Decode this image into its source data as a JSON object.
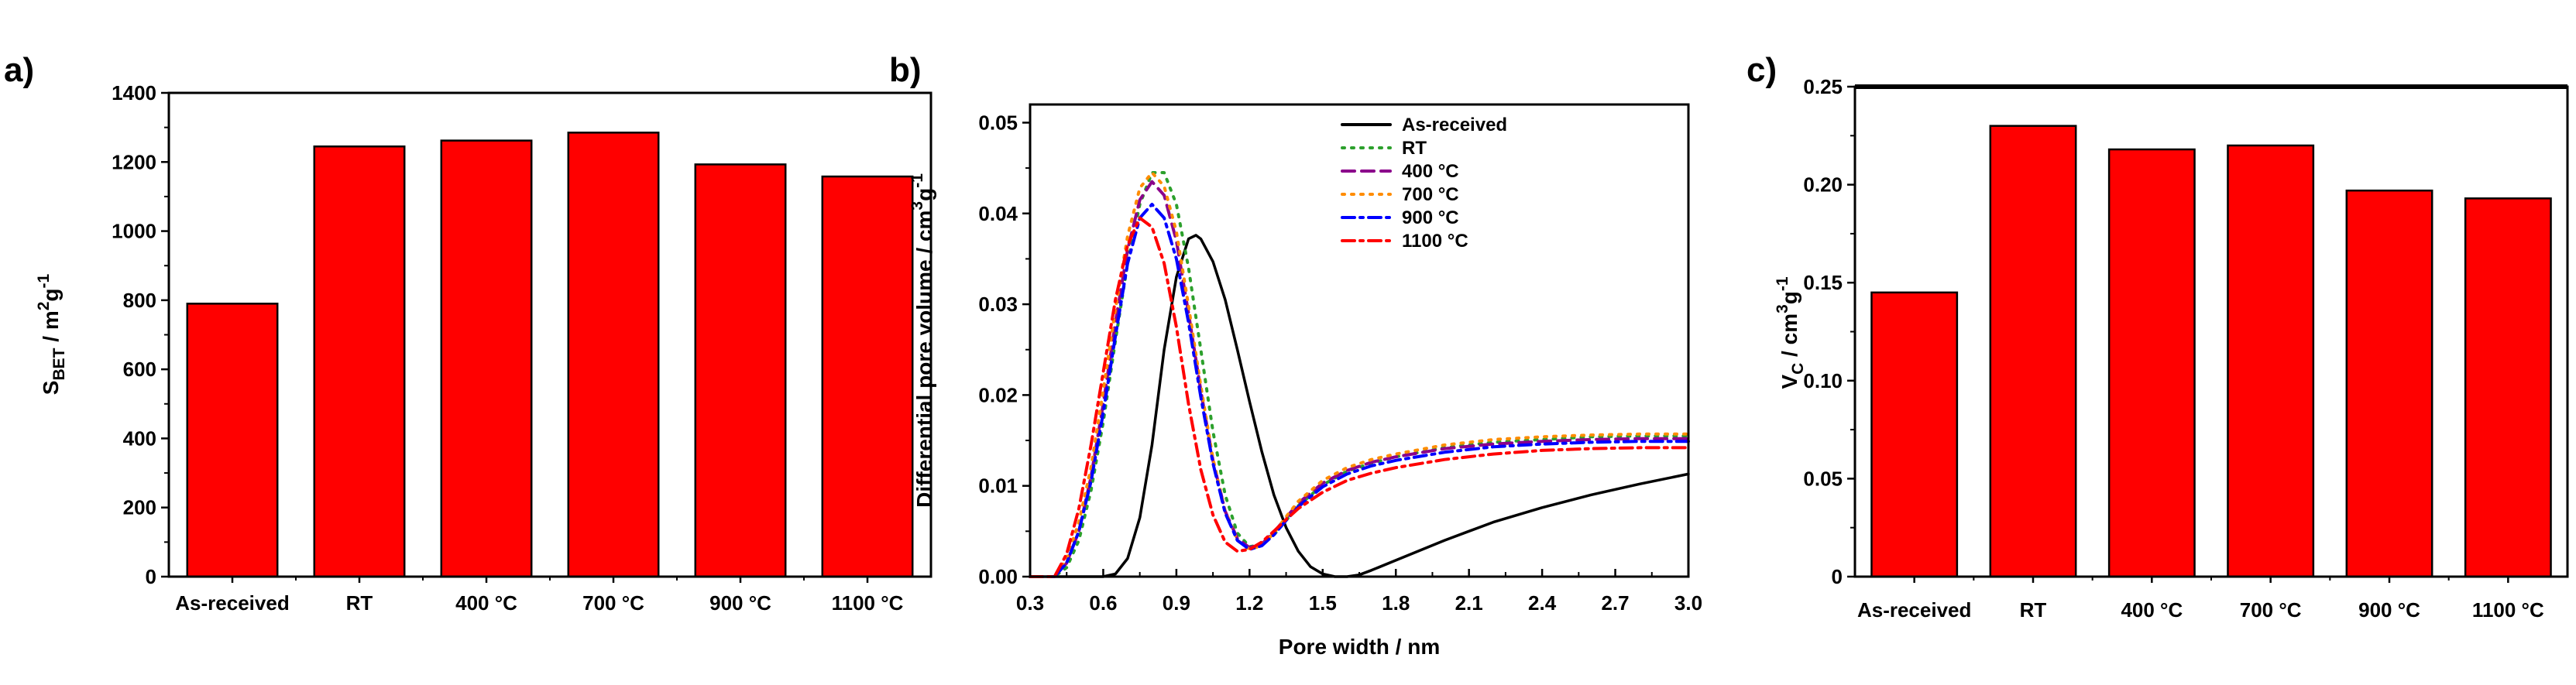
{
  "chart_data": [
    {
      "panel": "a)",
      "type": "bar",
      "categories": [
        "As-received",
        "RT",
        "400 °C",
        "700 °C",
        "900 °C",
        "1100 °C"
      ],
      "values": [
        790,
        1245,
        1262,
        1285,
        1193,
        1158
      ],
      "ylabel": "S_BET / m²g⁻¹",
      "ylabel_main": "S",
      "ylabel_sub": "BET",
      "ylabel_mid": " / m",
      "ylabel_sup1": "2",
      "ylabel_g": "g",
      "ylabel_sup2": "-1",
      "ylim": [
        0,
        1400
      ],
      "yticks": [
        "0",
        "200",
        "400",
        "600",
        "800",
        "1000",
        "1200",
        "1400"
      ],
      "bar_color": "#ff0000"
    },
    {
      "panel": "b)",
      "type": "line",
      "xlabel": "Pore width / nm",
      "ylabel": "Differential pore volume / cm³g⁻¹",
      "ylabel_text": "Differential pore volume / cm",
      "ylabel_sup1": "3",
      "ylabel_g": "g",
      "ylabel_sup2": "-1",
      "xlim": [
        0.3,
        3.0
      ],
      "ylim": [
        0,
        0.052
      ],
      "xticks": [
        "0.3",
        "0.6",
        "0.9",
        "1.2",
        "1.5",
        "1.8",
        "2.1",
        "2.4",
        "2.7",
        "3.0"
      ],
      "yticks": [
        "0.00",
        "0.01",
        "0.02",
        "0.03",
        "0.04",
        "0.05"
      ],
      "legend_position": "top-right",
      "series": [
        {
          "name": "As-received",
          "color": "#000000",
          "dash": "solid",
          "x": [
            0.3,
            0.6,
            0.65,
            0.7,
            0.75,
            0.8,
            0.85,
            0.9,
            0.95,
            0.98,
            1.0,
            1.05,
            1.1,
            1.15,
            1.2,
            1.25,
            1.3,
            1.35,
            1.4,
            1.45,
            1.5,
            1.55,
            1.6,
            1.65,
            1.7,
            1.8,
            1.9,
            2.0,
            2.1,
            2.2,
            2.4,
            2.6,
            2.8,
            3.0
          ],
          "y": [
            0.0,
            0.0,
            0.0003,
            0.002,
            0.0065,
            0.0145,
            0.025,
            0.033,
            0.0372,
            0.0376,
            0.0372,
            0.0347,
            0.0305,
            0.025,
            0.0193,
            0.0138,
            0.009,
            0.0054,
            0.0028,
            0.0011,
            0.0003,
            0.0,
            0.0,
            0.0002,
            0.0007,
            0.0018,
            0.0029,
            0.004,
            0.005,
            0.006,
            0.0076,
            0.009,
            0.0102,
            0.0113
          ]
        },
        {
          "name": "RT",
          "color": "#2ca02c",
          "dash": "dotted",
          "x": [
            0.3,
            0.4,
            0.45,
            0.5,
            0.55,
            0.6,
            0.65,
            0.7,
            0.75,
            0.8,
            0.85,
            0.9,
            0.95,
            1.0,
            1.05,
            1.1,
            1.15,
            1.2,
            1.25,
            1.3,
            1.35,
            1.4,
            1.5,
            1.6,
            1.7,
            1.8,
            2.0,
            2.2,
            2.4,
            2.6,
            2.8,
            3.0
          ],
          "y": [
            0.0,
            0.0,
            0.001,
            0.004,
            0.0095,
            0.017,
            0.026,
            0.0345,
            0.041,
            0.0445,
            0.0445,
            0.041,
            0.034,
            0.025,
            0.016,
            0.009,
            0.0048,
            0.0033,
            0.0035,
            0.0046,
            0.0062,
            0.0078,
            0.0101,
            0.0116,
            0.0125,
            0.0132,
            0.0142,
            0.0148,
            0.0151,
            0.0154,
            0.0155,
            0.0155
          ]
        },
        {
          "name": "400 °C",
          "color": "#8b008b",
          "dash": "dashed",
          "x": [
            0.3,
            0.4,
            0.45,
            0.5,
            0.55,
            0.6,
            0.65,
            0.7,
            0.75,
            0.8,
            0.85,
            0.9,
            0.95,
            1.0,
            1.05,
            1.1,
            1.15,
            1.2,
            1.25,
            1.3,
            1.35,
            1.4,
            1.5,
            1.6,
            1.7,
            1.8,
            2.0,
            2.2,
            2.4,
            2.6,
            2.8,
            3.0
          ],
          "y": [
            0.0,
            0.0,
            0.0015,
            0.005,
            0.011,
            0.019,
            0.028,
            0.036,
            0.0415,
            0.0435,
            0.042,
            0.037,
            0.029,
            0.0205,
            0.0128,
            0.0072,
            0.0042,
            0.0032,
            0.0036,
            0.0049,
            0.0065,
            0.0081,
            0.0103,
            0.0117,
            0.0126,
            0.0132,
            0.0141,
            0.0146,
            0.0149,
            0.0151,
            0.0152,
            0.0152
          ]
        },
        {
          "name": "700 °C",
          "color": "#ff8c00",
          "dash": "dotted",
          "x": [
            0.3,
            0.4,
            0.45,
            0.5,
            0.55,
            0.6,
            0.65,
            0.7,
            0.75,
            0.8,
            0.85,
            0.9,
            0.95,
            1.0,
            1.05,
            1.1,
            1.15,
            1.2,
            1.25,
            1.3,
            1.35,
            1.4,
            1.5,
            1.6,
            1.7,
            1.8,
            2.0,
            2.2,
            2.4,
            2.6,
            2.8,
            3.0
          ],
          "y": [
            0.0,
            0.0,
            0.002,
            0.006,
            0.012,
            0.0205,
            0.0295,
            0.0375,
            0.0428,
            0.0445,
            0.043,
            0.038,
            0.0298,
            0.021,
            0.013,
            0.0072,
            0.004,
            0.003,
            0.0034,
            0.0048,
            0.0066,
            0.0083,
            0.0106,
            0.012,
            0.0129,
            0.0135,
            0.0145,
            0.0151,
            0.0154,
            0.0156,
            0.0157,
            0.0157
          ]
        },
        {
          "name": "900 °C",
          "color": "#0000ff",
          "dash": "dashdot",
          "x": [
            0.3,
            0.4,
            0.45,
            0.5,
            0.55,
            0.6,
            0.65,
            0.7,
            0.75,
            0.8,
            0.85,
            0.9,
            0.95,
            1.0,
            1.05,
            1.1,
            1.15,
            1.2,
            1.25,
            1.3,
            1.35,
            1.4,
            1.5,
            1.6,
            1.7,
            1.8,
            2.0,
            2.2,
            2.4,
            2.6,
            2.8,
            3.0
          ],
          "y": [
            0.0,
            0.0,
            0.0015,
            0.005,
            0.0105,
            0.018,
            0.0265,
            0.0345,
            0.0395,
            0.041,
            0.0395,
            0.035,
            0.028,
            0.0198,
            0.0125,
            0.007,
            0.004,
            0.003,
            0.0034,
            0.0046,
            0.0062,
            0.0077,
            0.0099,
            0.0113,
            0.0122,
            0.0128,
            0.0137,
            0.0143,
            0.0146,
            0.0148,
            0.0149,
            0.0149
          ]
        },
        {
          "name": "1100 °C",
          "color": "#ff0000",
          "dash": "dashdot",
          "x": [
            0.3,
            0.4,
            0.45,
            0.5,
            0.55,
            0.6,
            0.65,
            0.7,
            0.75,
            0.8,
            0.85,
            0.9,
            0.95,
            1.0,
            1.05,
            1.1,
            1.15,
            1.2,
            1.25,
            1.3,
            1.35,
            1.4,
            1.5,
            1.6,
            1.7,
            1.8,
            2.0,
            2.2,
            2.4,
            2.6,
            2.8,
            3.0
          ],
          "y": [
            0.0,
            0.0,
            0.0025,
            0.0075,
            0.0145,
            0.0225,
            0.0305,
            0.0365,
            0.0395,
            0.0385,
            0.0345,
            0.0275,
            0.019,
            0.0118,
            0.0068,
            0.0038,
            0.0028,
            0.003,
            0.0038,
            0.005,
            0.0063,
            0.0075,
            0.0093,
            0.0106,
            0.0114,
            0.012,
            0.0129,
            0.0135,
            0.0139,
            0.0141,
            0.0142,
            0.0142
          ]
        }
      ]
    },
    {
      "panel": "c)",
      "type": "bar",
      "categories": [
        "As-received",
        "RT",
        "400 °C",
        "700 °C",
        "900 °C",
        "1100 °C"
      ],
      "values": [
        0.145,
        0.23,
        0.218,
        0.22,
        0.197,
        0.193
      ],
      "ylabel": "V_C / cm³g⁻¹",
      "ylabel_main": "V",
      "ylabel_sub": "C",
      "ylabel_mid": " / cm",
      "ylabel_sup1": "3",
      "ylabel_g": "g",
      "ylabel_sup2": "-1",
      "ylim": [
        0,
        0.25
      ],
      "yticks": [
        "0",
        "0.05",
        "0.10",
        "0.15",
        "0.20",
        "0.25"
      ],
      "bar_color": "#ff0000"
    }
  ]
}
